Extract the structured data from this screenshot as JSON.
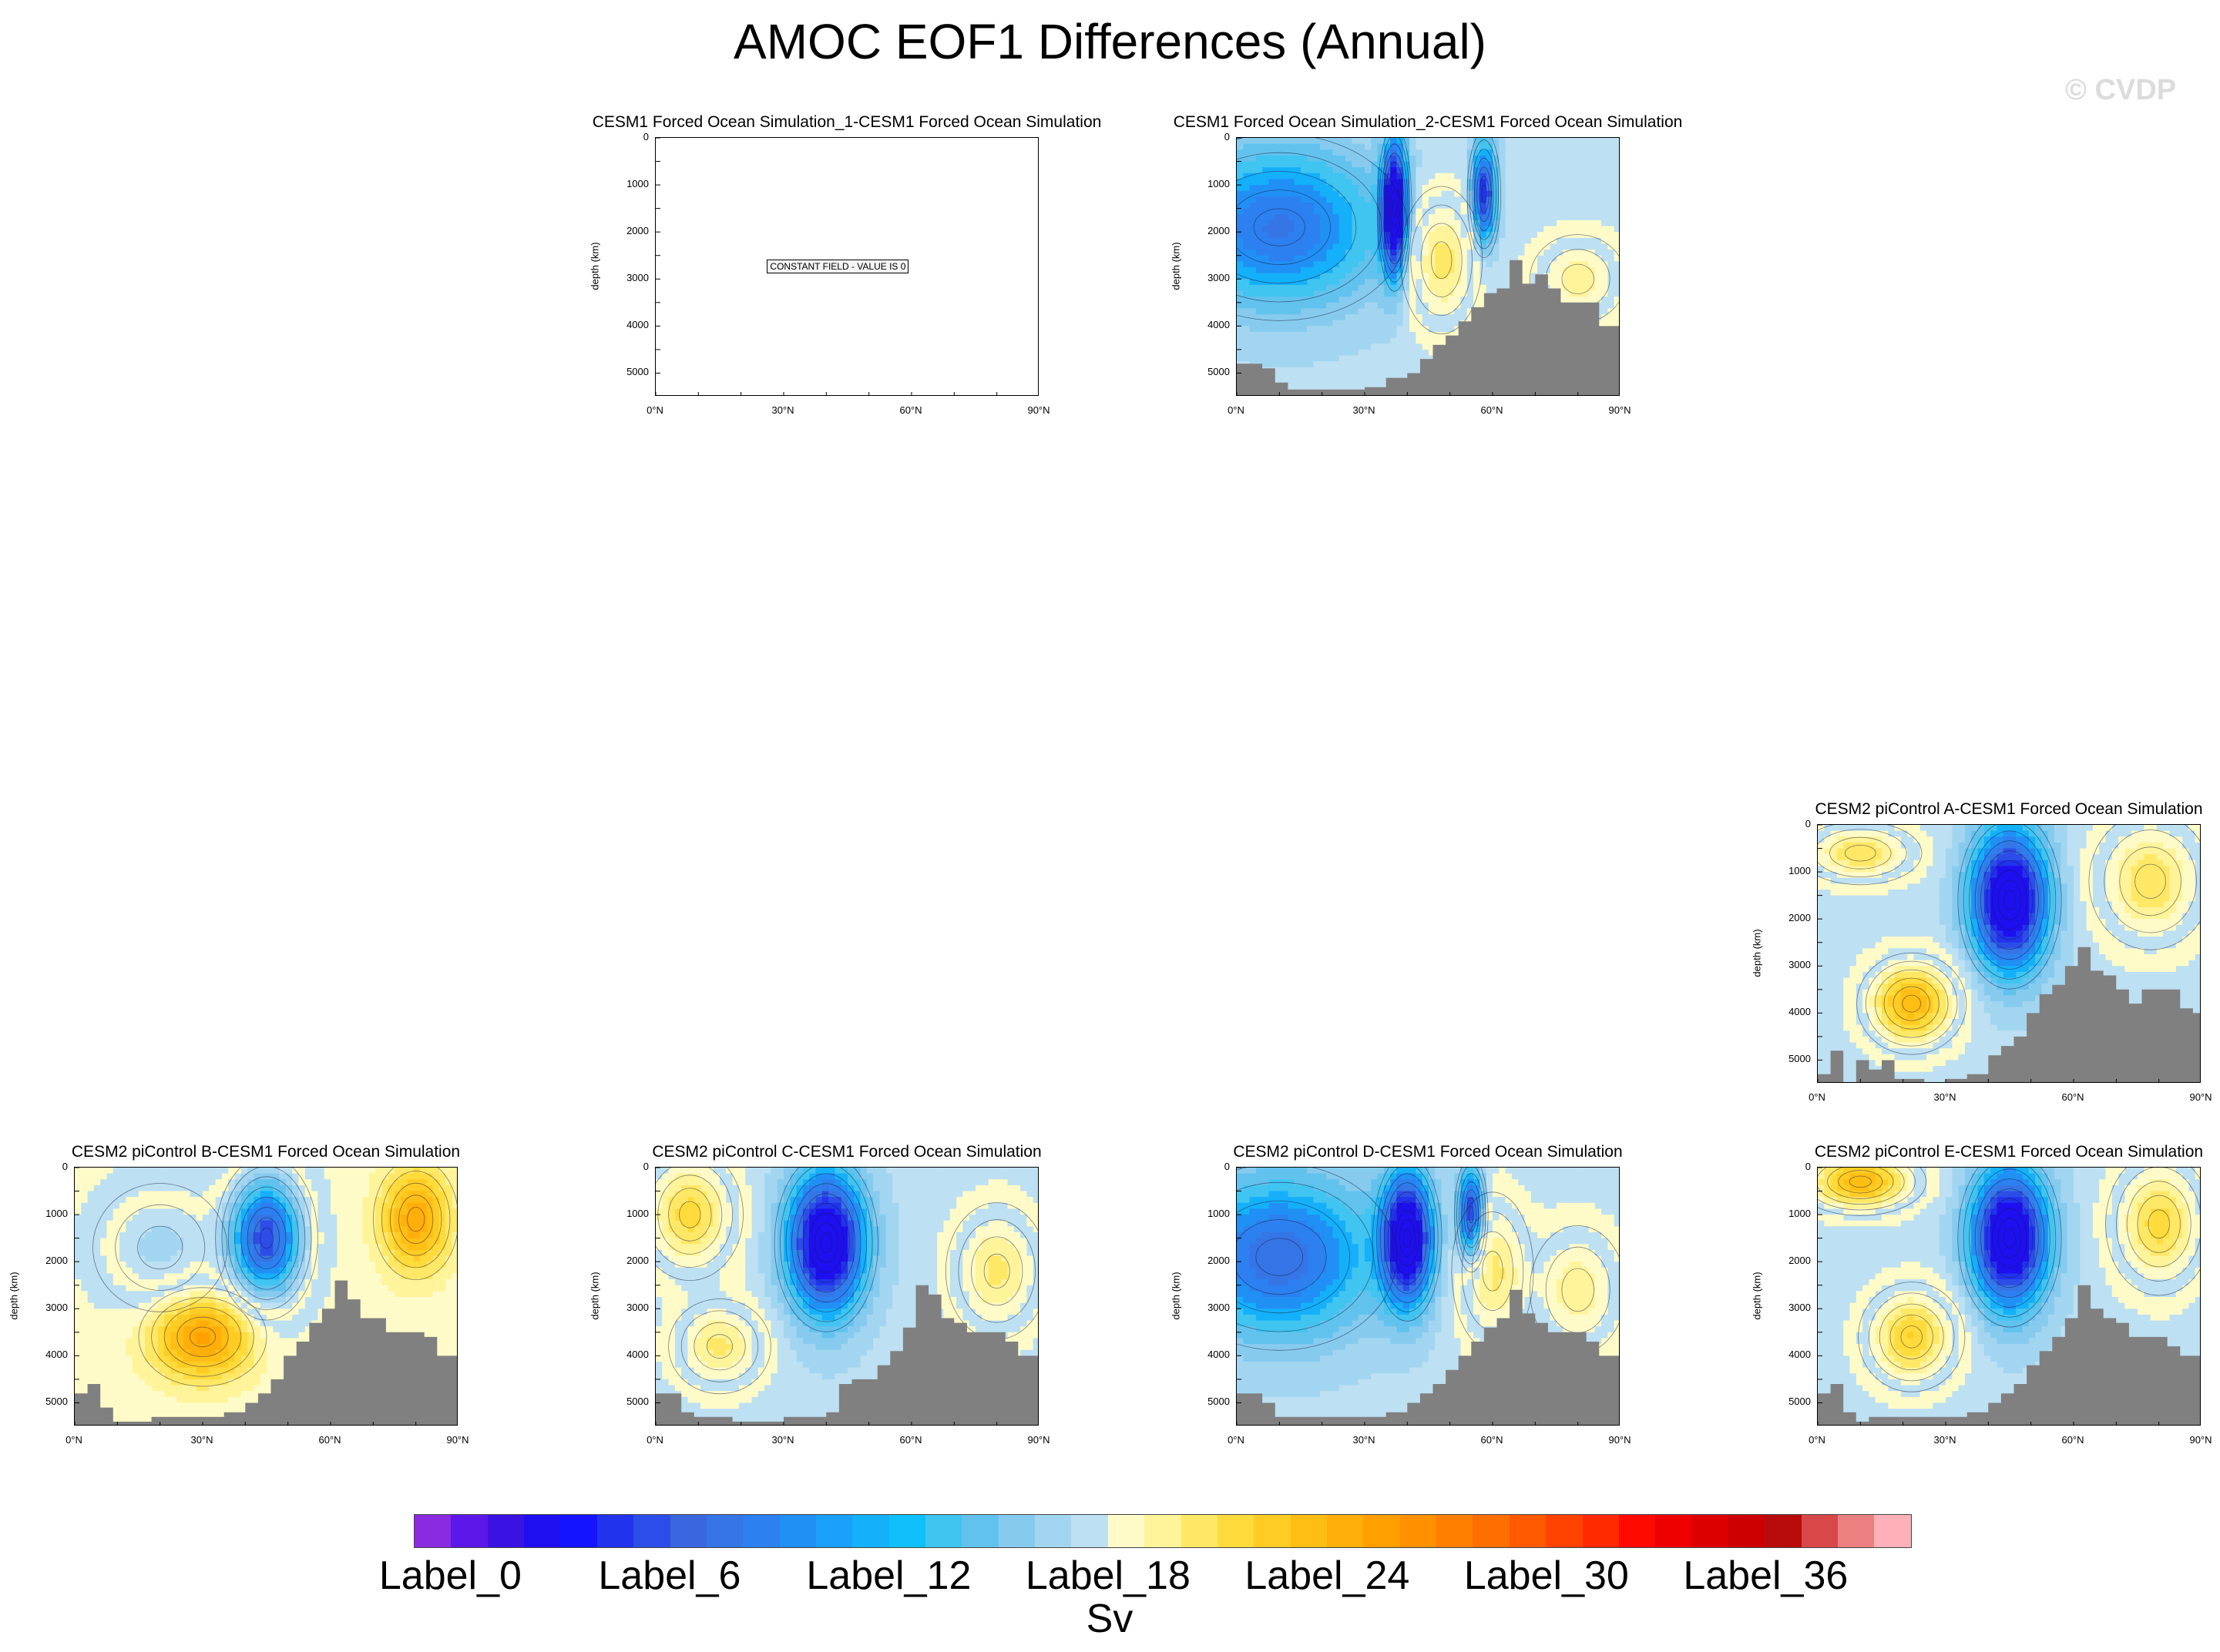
{
  "title": "AMOC EOF1 Differences (Annual)",
  "watermark": "© CVDP",
  "colorbar": {
    "units": "Sv",
    "labels": [
      "Label_0",
      "Label_6",
      "Label_12",
      "Label_18",
      "Label_24",
      "Label_30",
      "Label_36"
    ],
    "colors": [
      "#8a2be2",
      "#5c18e8",
      "#3a13e3",
      "#1e0ff0",
      "#1414ff",
      "#2233ee",
      "#2d4de8",
      "#3a66e0",
      "#3575e6",
      "#2c80f0",
      "#2090f5",
      "#1aa0fa",
      "#14b0fa",
      "#10c0fa",
      "#40c4f0",
      "#62c2ee",
      "#86cbee",
      "#a2d6f0",
      "#bde0f2",
      "#fffbc8",
      "#fff49a",
      "#ffe866",
      "#ffdc3c",
      "#ffcc24",
      "#ffbe14",
      "#ffae0a",
      "#ffa000",
      "#ff9000",
      "#ff8000",
      "#ff6e00",
      "#ff5a00",
      "#ff4200",
      "#ff2a00",
      "#ff0a00",
      "#ee0000",
      "#dc0000",
      "#cc0000",
      "#b80c0c",
      "#d84848",
      "#ec8080",
      "#ffb0b8"
    ]
  },
  "chart_data": [
    {
      "type": "heatmap",
      "title": "CESM1 Forced Ocean Simulation_1-CESM1 Forced Ocean Simulation",
      "ylabel": "depth (km)",
      "yticks": [
        "0",
        "1000",
        "2000",
        "3000",
        "4000",
        "5000"
      ],
      "xticks": [
        "0°N",
        "30°N",
        "60°N",
        "90°N"
      ],
      "x_range": [
        0,
        90
      ],
      "y_range": [
        0,
        5500
      ],
      "constant": true,
      "annotation": "CONSTANT FIELD - VALUE IS 0",
      "features": []
    },
    {
      "type": "heatmap",
      "title": "CESM1 Forced Ocean Simulation_2-CESM1 Forced Ocean Simulation",
      "ylabel": "depth (km)",
      "yticks": [
        "0",
        "1000",
        "2000",
        "3000",
        "4000",
        "5000"
      ],
      "xticks": [
        "0°N",
        "30°N",
        "60°N",
        "90°N"
      ],
      "x_range": [
        0,
        90
      ],
      "y_range": [
        0,
        5500
      ],
      "constant": false,
      "background_sign": "neg",
      "features": [
        {
          "lat": 10,
          "depth": 1900,
          "wlat": 24,
          "wdepth": 1700,
          "sign": "neg",
          "strength": 0.55
        },
        {
          "lat": 37,
          "depth": 1500,
          "wlat": 3,
          "wdepth": 1400,
          "sign": "neg",
          "strength": 1.0
        },
        {
          "lat": 58,
          "depth": 1200,
          "wlat": 3,
          "wdepth": 1100,
          "sign": "neg",
          "strength": 0.75
        },
        {
          "lat": 48,
          "depth": 2600,
          "wlat": 8,
          "wdepth": 1400,
          "sign": "pos",
          "strength": 0.45
        },
        {
          "lat": 80,
          "depth": 3000,
          "wlat": 10,
          "wdepth": 900,
          "sign": "pos",
          "strength": 0.35
        }
      ],
      "bathymetry": [
        [
          0,
          4800
        ],
        [
          3,
          4800
        ],
        [
          6,
          4900
        ],
        [
          9,
          5200
        ],
        [
          12,
          5350
        ],
        [
          15,
          5350
        ],
        [
          20,
          5350
        ],
        [
          25,
          5350
        ],
        [
          30,
          5300
        ],
        [
          35,
          5100
        ],
        [
          40,
          5000
        ],
        [
          43,
          4700
        ],
        [
          46,
          4400
        ],
        [
          49,
          4200
        ],
        [
          52,
          3900
        ],
        [
          55,
          3600
        ],
        [
          58,
          3300
        ],
        [
          61,
          3200
        ],
        [
          64,
          2600
        ],
        [
          67,
          3100
        ],
        [
          70,
          2900
        ],
        [
          73,
          3200
        ],
        [
          76,
          3500
        ],
        [
          79,
          3500
        ],
        [
          82,
          3500
        ],
        [
          85,
          4000
        ],
        [
          88,
          4000
        ],
        [
          90,
          4000
        ]
      ]
    },
    {
      "type": "heatmap",
      "title": "CESM2 piControl A-CESM1 Forced Ocean Simulation",
      "ylabel": "depth (km)",
      "yticks": [
        "0",
        "1000",
        "2000",
        "3000",
        "4000",
        "5000"
      ],
      "xticks": [
        "0°N",
        "30°N",
        "60°N",
        "90°N"
      ],
      "x_range": [
        0,
        90
      ],
      "y_range": [
        0,
        5500
      ],
      "constant": false,
      "background_sign": "neg",
      "features": [
        {
          "lat": 45,
          "depth": 1600,
          "wlat": 9,
          "wdepth": 1500,
          "sign": "neg",
          "strength": 1.0
        },
        {
          "lat": 22,
          "depth": 3800,
          "wlat": 10,
          "wdepth": 900,
          "sign": "pos",
          "strength": 0.7
        },
        {
          "lat": 10,
          "depth": 600,
          "wlat": 12,
          "wdepth": 600,
          "sign": "pos",
          "strength": 0.45
        },
        {
          "lat": 78,
          "depth": 1200,
          "wlat": 12,
          "wdepth": 1300,
          "sign": "pos",
          "strength": 0.45
        }
      ],
      "bathymetry": [
        [
          0,
          5300
        ],
        [
          3,
          4800
        ],
        [
          6,
          5500
        ],
        [
          9,
          5000
        ],
        [
          12,
          5200
        ],
        [
          15,
          5000
        ],
        [
          18,
          5400
        ],
        [
          21,
          5400
        ],
        [
          25,
          5500
        ],
        [
          30,
          5400
        ],
        [
          35,
          5300
        ],
        [
          40,
          4900
        ],
        [
          43,
          4700
        ],
        [
          46,
          4500
        ],
        [
          49,
          4000
        ],
        [
          52,
          3600
        ],
        [
          55,
          3400
        ],
        [
          58,
          3000
        ],
        [
          61,
          2600
        ],
        [
          64,
          3100
        ],
        [
          67,
          3200
        ],
        [
          70,
          3500
        ],
        [
          73,
          3800
        ],
        [
          76,
          3500
        ],
        [
          79,
          3500
        ],
        [
          82,
          3500
        ],
        [
          85,
          3900
        ],
        [
          88,
          4000
        ],
        [
          90,
          4000
        ]
      ]
    },
    {
      "type": "heatmap",
      "title": "CESM2 piControl B-CESM1 Forced Ocean Simulation",
      "ylabel": "depth (km)",
      "yticks": [
        "0",
        "1000",
        "2000",
        "3000",
        "4000",
        "5000"
      ],
      "xticks": [
        "0°N",
        "30°N",
        "60°N",
        "90°N"
      ],
      "x_range": [
        0,
        90
      ],
      "y_range": [
        0,
        5500
      ],
      "constant": false,
      "background_sign": "pos",
      "features": [
        {
          "lat": 45,
          "depth": 1500,
          "wlat": 9,
          "wdepth": 1400,
          "sign": "neg",
          "strength": 0.9
        },
        {
          "lat": 30,
          "depth": 3600,
          "wlat": 12,
          "wdepth": 900,
          "sign": "pos",
          "strength": 0.6
        },
        {
          "lat": 20,
          "depth": 1700,
          "wlat": 14,
          "wdepth": 1300,
          "sign": "neg",
          "strength": 0.3
        },
        {
          "lat": 80,
          "depth": 1100,
          "wlat": 8,
          "wdepth": 1100,
          "sign": "pos",
          "strength": 0.55
        }
      ],
      "bathymetry": [
        [
          0,
          4800
        ],
        [
          3,
          4600
        ],
        [
          6,
          5100
        ],
        [
          9,
          5400
        ],
        [
          12,
          5400
        ],
        [
          18,
          5300
        ],
        [
          25,
          5300
        ],
        [
          30,
          5300
        ],
        [
          35,
          5200
        ],
        [
          40,
          5000
        ],
        [
          43,
          4800
        ],
        [
          46,
          4500
        ],
        [
          49,
          4000
        ],
        [
          52,
          3700
        ],
        [
          55,
          3300
        ],
        [
          58,
          3000
        ],
        [
          61,
          2400
        ],
        [
          64,
          2800
        ],
        [
          67,
          3200
        ],
        [
          70,
          3200
        ],
        [
          73,
          3500
        ],
        [
          76,
          3500
        ],
        [
          79,
          3500
        ],
        [
          82,
          3600
        ],
        [
          85,
          4000
        ],
        [
          88,
          4000
        ],
        [
          90,
          4000
        ]
      ]
    },
    {
      "type": "heatmap",
      "title": "CESM2 piControl C-CESM1 Forced Ocean Simulation",
      "ylabel": "depth (km)",
      "yticks": [
        "0",
        "1000",
        "2000",
        "3000",
        "4000",
        "5000"
      ],
      "xticks": [
        "0°N",
        "30°N",
        "60°N",
        "90°N"
      ],
      "x_range": [
        0,
        90
      ],
      "y_range": [
        0,
        5500
      ],
      "constant": false,
      "background_sign": "neg",
      "features": [
        {
          "lat": 40,
          "depth": 1600,
          "wlat": 9,
          "wdepth": 1500,
          "sign": "neg",
          "strength": 1.0
        },
        {
          "lat": 8,
          "depth": 1000,
          "wlat": 10,
          "wdepth": 1200,
          "sign": "pos",
          "strength": 0.5
        },
        {
          "lat": 15,
          "depth": 3800,
          "wlat": 10,
          "wdepth": 900,
          "sign": "pos",
          "strength": 0.4
        },
        {
          "lat": 80,
          "depth": 2200,
          "wlat": 10,
          "wdepth": 1300,
          "sign": "pos",
          "strength": 0.4
        }
      ],
      "bathymetry": [
        [
          0,
          4800
        ],
        [
          3,
          4800
        ],
        [
          6,
          5200
        ],
        [
          9,
          5300
        ],
        [
          12,
          5300
        ],
        [
          18,
          5400
        ],
        [
          25,
          5400
        ],
        [
          30,
          5300
        ],
        [
          35,
          5300
        ],
        [
          40,
          5200
        ],
        [
          43,
          4600
        ],
        [
          46,
          4500
        ],
        [
          49,
          4500
        ],
        [
          52,
          4200
        ],
        [
          55,
          3900
        ],
        [
          58,
          3400
        ],
        [
          61,
          2500
        ],
        [
          64,
          2700
        ],
        [
          67,
          3200
        ],
        [
          70,
          3300
        ],
        [
          73,
          3500
        ],
        [
          76,
          3500
        ],
        [
          79,
          3500
        ],
        [
          82,
          3700
        ],
        [
          85,
          4000
        ],
        [
          88,
          4000
        ],
        [
          90,
          4000
        ]
      ]
    },
    {
      "type": "heatmap",
      "title": "CESM2 piControl D-CESM1 Forced Ocean Simulation",
      "ylabel": "depth (km)",
      "yticks": [
        "0",
        "1000",
        "2000",
        "3000",
        "4000",
        "5000"
      ],
      "xticks": [
        "0°N",
        "30°N",
        "60°N",
        "90°N"
      ],
      "x_range": [
        0,
        90
      ],
      "y_range": [
        0,
        5500
      ],
      "constant": false,
      "background_sign": "neg",
      "features": [
        {
          "lat": 10,
          "depth": 1900,
          "wlat": 22,
          "wdepth": 1700,
          "sign": "neg",
          "strength": 0.6
        },
        {
          "lat": 40,
          "depth": 1500,
          "wlat": 6,
          "wdepth": 1400,
          "sign": "neg",
          "strength": 0.95
        },
        {
          "lat": 55,
          "depth": 1000,
          "wlat": 3,
          "wdepth": 1000,
          "sign": "neg",
          "strength": 0.8
        },
        {
          "lat": 60,
          "depth": 2200,
          "wlat": 8,
          "wdepth": 1500,
          "sign": "pos",
          "strength": 0.4
        },
        {
          "lat": 80,
          "depth": 2600,
          "wlat": 10,
          "wdepth": 1300,
          "sign": "pos",
          "strength": 0.35
        }
      ],
      "bathymetry": [
        [
          0,
          4800
        ],
        [
          3,
          4800
        ],
        [
          6,
          5000
        ],
        [
          9,
          5300
        ],
        [
          12,
          5300
        ],
        [
          18,
          5300
        ],
        [
          25,
          5300
        ],
        [
          30,
          5300
        ],
        [
          35,
          5200
        ],
        [
          40,
          5000
        ],
        [
          43,
          4800
        ],
        [
          46,
          4600
        ],
        [
          49,
          4300
        ],
        [
          52,
          4000
        ],
        [
          55,
          3700
        ],
        [
          58,
          3400
        ],
        [
          61,
          3200
        ],
        [
          64,
          2600
        ],
        [
          67,
          3100
        ],
        [
          70,
          3300
        ],
        [
          73,
          3500
        ],
        [
          76,
          3500
        ],
        [
          79,
          3500
        ],
        [
          82,
          3700
        ],
        [
          85,
          4000
        ],
        [
          88,
          4000
        ],
        [
          90,
          4000
        ]
      ]
    },
    {
      "type": "heatmap",
      "title": "CESM2 piControl E-CESM1 Forced Ocean Simulation",
      "ylabel": "depth (km)",
      "yticks": [
        "0",
        "1000",
        "2000",
        "3000",
        "4000",
        "5000"
      ],
      "xticks": [
        "0°N",
        "30°N",
        "60°N",
        "90°N"
      ],
      "x_range": [
        0,
        90
      ],
      "y_range": [
        0,
        5500
      ],
      "constant": false,
      "background_sign": "neg",
      "features": [
        {
          "lat": 45,
          "depth": 1500,
          "wlat": 9,
          "wdepth": 1500,
          "sign": "neg",
          "strength": 1.0
        },
        {
          "lat": 10,
          "depth": 300,
          "wlat": 12,
          "wdepth": 600,
          "sign": "pos",
          "strength": 0.7
        },
        {
          "lat": 22,
          "depth": 3600,
          "wlat": 10,
          "wdepth": 1000,
          "sign": "pos",
          "strength": 0.55
        },
        {
          "lat": 80,
          "depth": 1200,
          "wlat": 10,
          "wdepth": 1300,
          "sign": "pos",
          "strength": 0.5
        }
      ],
      "bathymetry": [
        [
          0,
          4800
        ],
        [
          3,
          4600
        ],
        [
          6,
          5200
        ],
        [
          9,
          5400
        ],
        [
          12,
          5300
        ],
        [
          18,
          5300
        ],
        [
          25,
          5300
        ],
        [
          30,
          5300
        ],
        [
          35,
          5200
        ],
        [
          40,
          5000
        ],
        [
          43,
          4800
        ],
        [
          46,
          4600
        ],
        [
          49,
          4200
        ],
        [
          52,
          3900
        ],
        [
          55,
          3600
        ],
        [
          58,
          3200
        ],
        [
          61,
          2500
        ],
        [
          64,
          3000
        ],
        [
          67,
          3200
        ],
        [
          70,
          3300
        ],
        [
          73,
          3600
        ],
        [
          76,
          3600
        ],
        [
          79,
          3600
        ],
        [
          82,
          3800
        ],
        [
          85,
          4000
        ],
        [
          88,
          4000
        ],
        [
          90,
          4000
        ]
      ]
    }
  ]
}
